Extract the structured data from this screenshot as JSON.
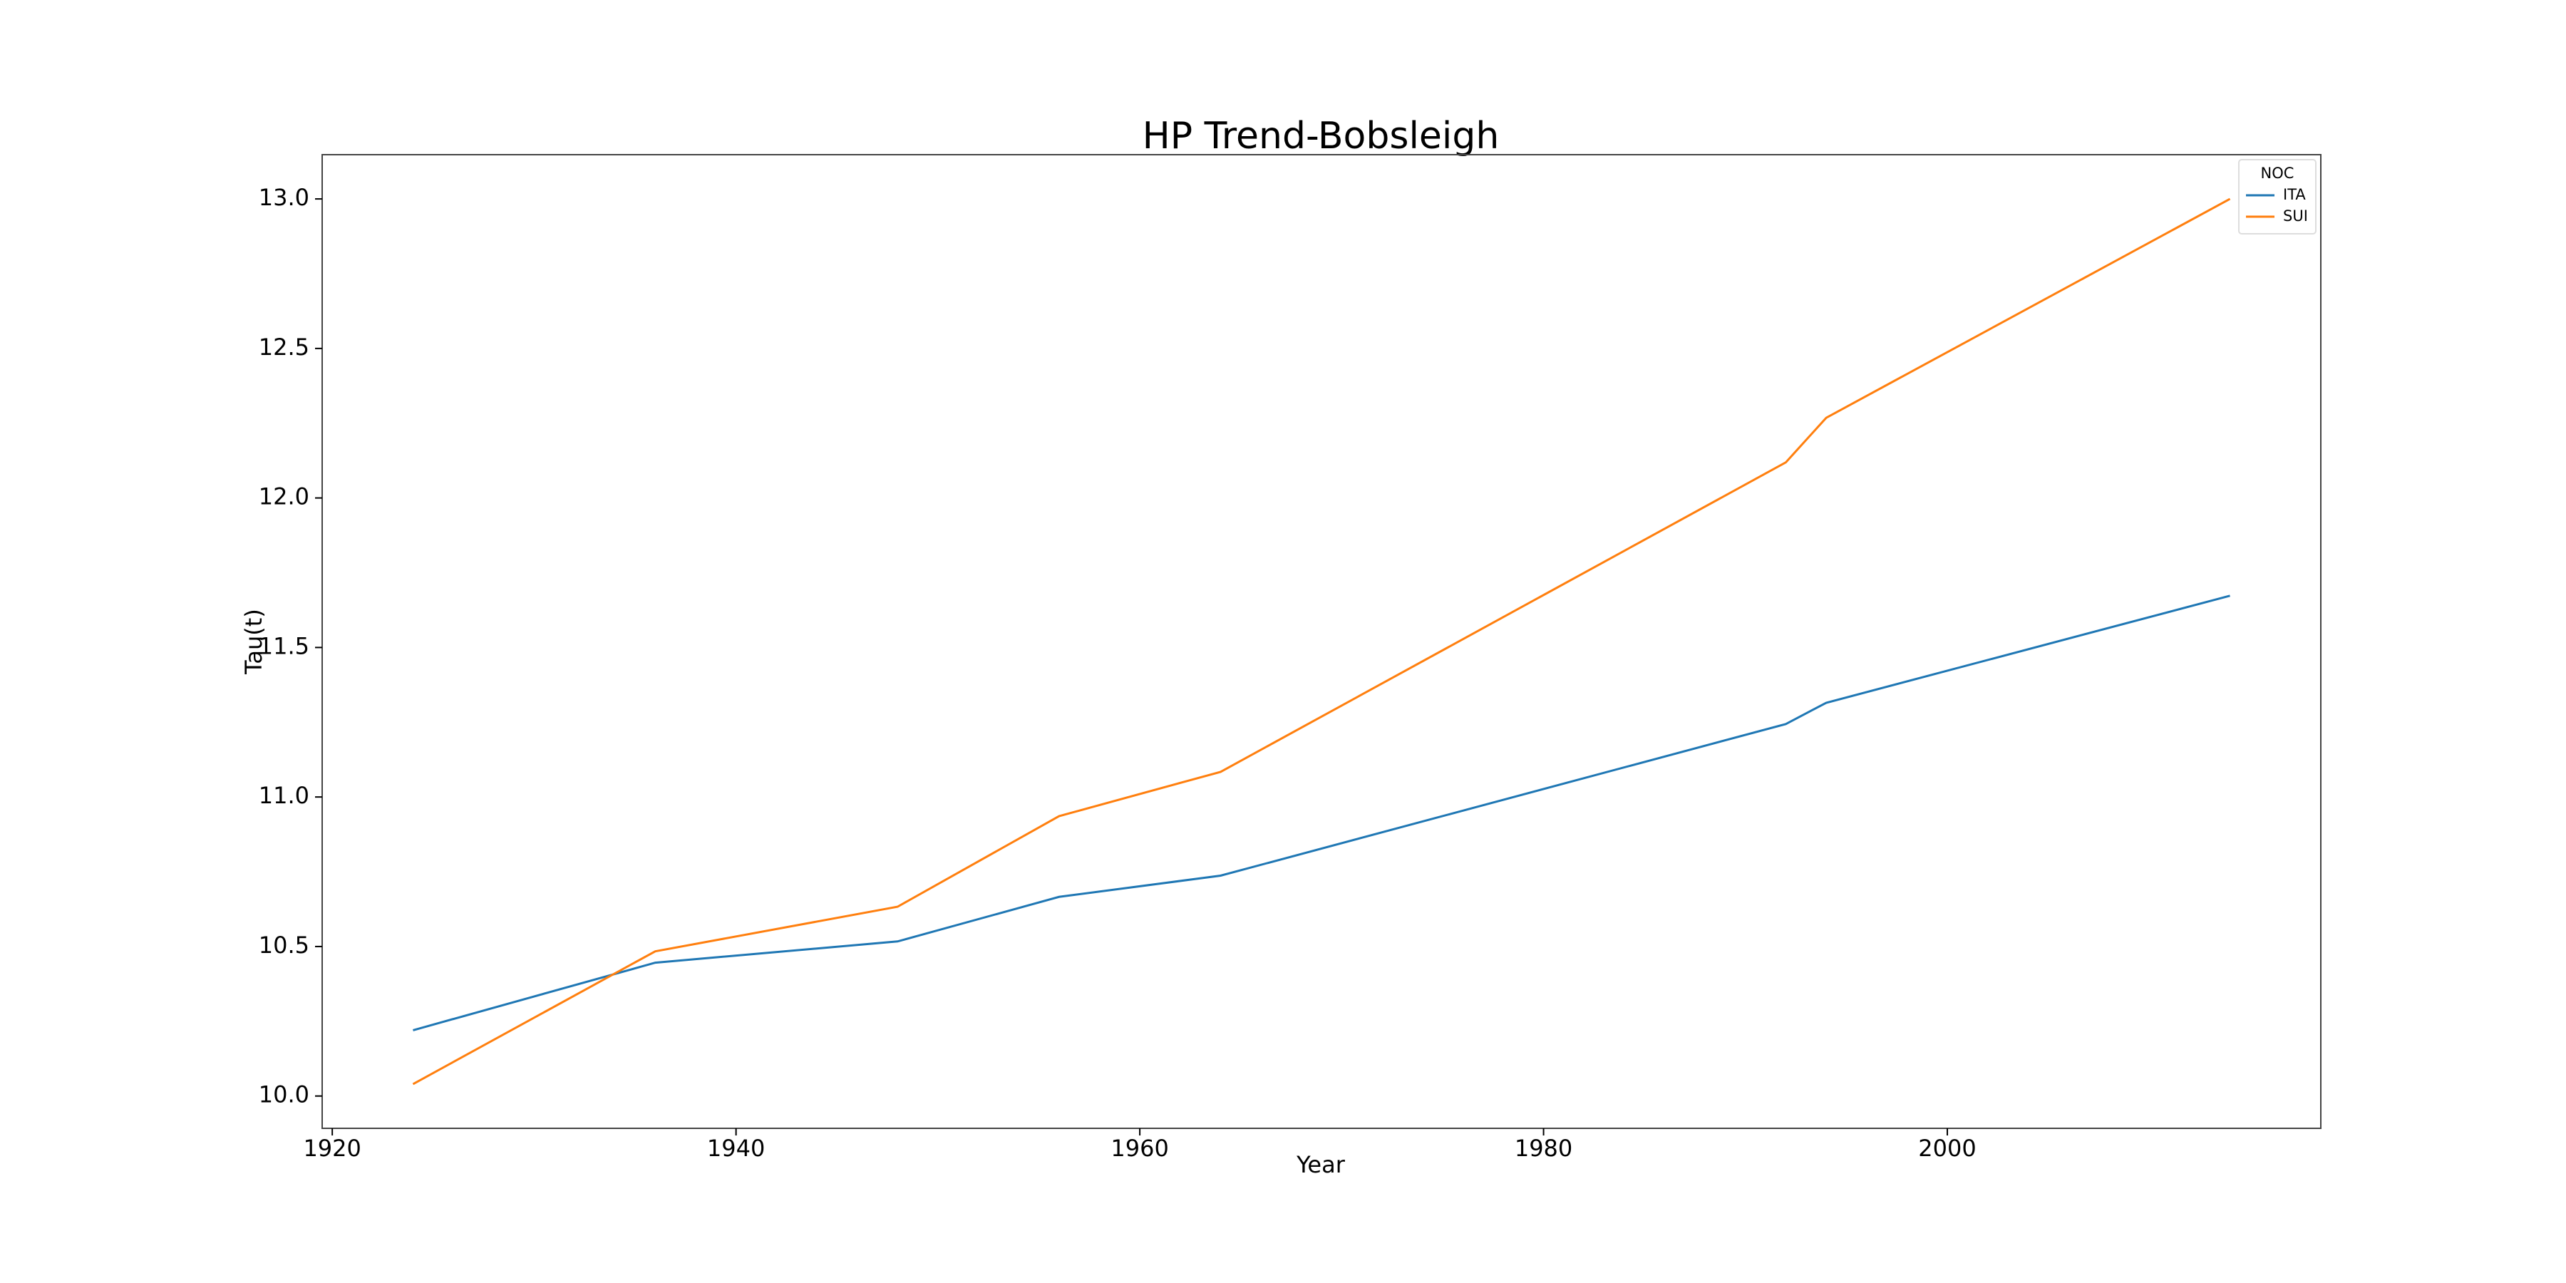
{
  "chart_data": {
    "type": "line",
    "title": "HP Trend-Bobsleigh",
    "x_label": "Year",
    "y_label": "Tau(t)",
    "x": [
      1924,
      1936,
      1948,
      1956,
      1964,
      1992,
      1994,
      2014
    ],
    "series": [
      {
        "name": "ITA",
        "color": "#1f77b4",
        "values": [
          10.22,
          10.446,
          10.517,
          10.666,
          10.737,
          11.244,
          11.315,
          11.673
        ]
      },
      {
        "name": "SUI",
        "color": "#ff7f0e",
        "values": [
          10.04,
          10.484,
          10.633,
          10.936,
          11.084,
          12.119,
          12.268,
          13.0
        ]
      }
    ],
    "xlim": [
      1919.5,
      2018.5
    ],
    "xticks": [
      1920,
      1940,
      1960,
      1980,
      2000
    ],
    "ylim": [
      9.892,
      13.148
    ],
    "yticks": [
      {
        "value": 10,
        "label": "10.0"
      },
      10.5,
      {
        "value": 11,
        "label": "11.0"
      },
      11.5,
      {
        "value": 12,
        "label": "12.0"
      },
      12.5,
      {
        "value": 13,
        "label": "13.0"
      }
    ],
    "grid": false,
    "legend": "upper right",
    "legend_title": "NOC"
  }
}
